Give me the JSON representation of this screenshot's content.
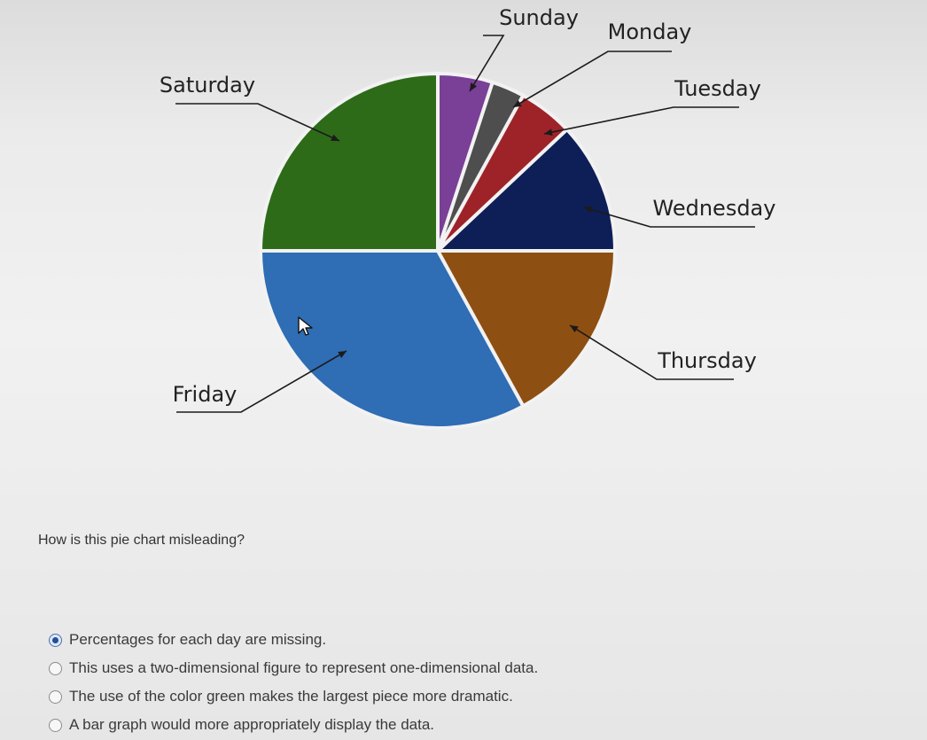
{
  "chart_data": {
    "type": "pie",
    "title": "",
    "slices": [
      {
        "label": "Sunday",
        "value": 5,
        "color": "#7a3f97"
      },
      {
        "label": "Monday",
        "value": 3,
        "color": "#4e4e4e"
      },
      {
        "label": "Tuesday",
        "value": 5,
        "color": "#9e2328"
      },
      {
        "label": "Wednesday",
        "value": 12,
        "color": "#0e1e57"
      },
      {
        "label": "Thursday",
        "value": 17,
        "color": "#8e4f12"
      },
      {
        "label": "Friday",
        "value": 33,
        "color": "#2f6db4"
      },
      {
        "label": "Saturday",
        "value": 25,
        "color": "#2d6b19"
      }
    ]
  },
  "question": {
    "text": "How is this pie chart misleading?"
  },
  "options": [
    {
      "label": "Percentages for each day are missing.",
      "selected": true
    },
    {
      "label": "This uses a two-dimensional figure to represent one-dimensional data.",
      "selected": false
    },
    {
      "label": "The use of the color green makes the largest piece more dramatic.",
      "selected": false
    },
    {
      "label": "A bar graph would more appropriately display the data.",
      "selected": false
    }
  ],
  "icons": {
    "cursor": "arrow-cursor-icon"
  }
}
